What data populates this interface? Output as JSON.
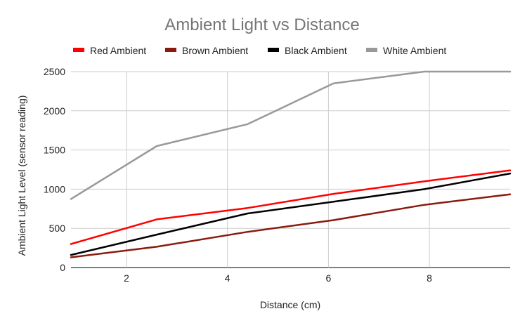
{
  "chart_data": {
    "type": "line",
    "title": "Ambient Light vs Distance",
    "xlabel": "Distance (cm)",
    "ylabel": "Ambient Light Level (sensor reading)",
    "xlim": [
      0.9,
      9.6
    ],
    "ylim": [
      0,
      2500
    ],
    "xticks": [
      2,
      4,
      6,
      8
    ],
    "yticks": [
      0,
      500,
      1000,
      1500,
      2000,
      2500
    ],
    "grid": true,
    "legend_position": "top",
    "series": [
      {
        "name": "Red Ambient",
        "color": "#ff0000",
        "x": [
          0.9,
          2.6,
          4.4,
          6.1,
          7.9,
          9.6
        ],
        "y": [
          300,
          615,
          760,
          940,
          1100,
          1240
        ]
      },
      {
        "name": "Brown Ambient",
        "color": "#8b1a0e",
        "x": [
          0.9,
          2.6,
          4.4,
          6.1,
          7.9,
          9.6
        ],
        "y": [
          130,
          265,
          455,
          605,
          800,
          935
        ]
      },
      {
        "name": "Black Ambient",
        "color": "#000000",
        "x": [
          0.9,
          2.6,
          4.4,
          6.1,
          7.9,
          9.6
        ],
        "y": [
          160,
          420,
          690,
          840,
          1000,
          1200
        ]
      },
      {
        "name": "White Ambient",
        "color": "#999999",
        "x": [
          0.9,
          2.6,
          4.4,
          6.1,
          7.9,
          9.6
        ],
        "y": [
          875,
          1550,
          1830,
          2350,
          2500,
          2500
        ]
      }
    ]
  }
}
